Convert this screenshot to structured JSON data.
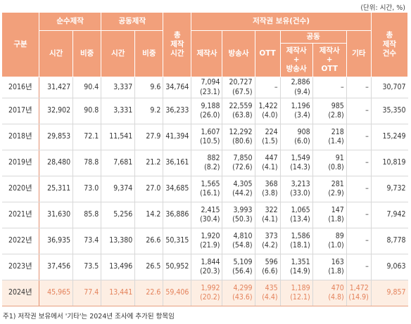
{
  "unit_note": "(단위: 시간, %)",
  "headers": {
    "gubun": "구분",
    "pure_production": "순수제작",
    "co_production": "공동제작",
    "time": "시간",
    "ratio": "비중",
    "total_time": "총\n제작\n시간",
    "copyright": "저작권 보유(건수)",
    "producer": "제작사",
    "broadcaster": "방송사",
    "ott": "OTT",
    "joint": "공동",
    "prod_broad": "제작사\n+\n방송사",
    "prod_ott": "제작사\n+\nOTT",
    "other": "기타",
    "total_count": "총\n제작\n건수"
  },
  "rows": [
    {
      "year": "2016년",
      "pt": "31,427",
      "pr": "90.4",
      "ct": "3,337",
      "cr": "9.6",
      "total": "34,764",
      "producer": [
        "7,094",
        "(23.1)"
      ],
      "broadcaster": [
        "20,727",
        "(67.5)"
      ],
      "ott": [
        "–",
        ""
      ],
      "pb": [
        "2,886",
        "(9.4)"
      ],
      "po": [
        "–",
        ""
      ],
      "other": [
        "–",
        ""
      ],
      "count": "30,707"
    },
    {
      "year": "2017년",
      "pt": "32,902",
      "pr": "90.8",
      "ct": "3,331",
      "cr": "9.2",
      "total": "36,233",
      "producer": [
        "9,188",
        "(26.0)"
      ],
      "broadcaster": [
        "22,559",
        "(63.8)"
      ],
      "ott": [
        "1,422",
        "(4.0)"
      ],
      "pb": [
        "1,196",
        "(3.4)"
      ],
      "po": [
        "985",
        "(2.8)"
      ],
      "other": [
        "–",
        ""
      ],
      "count": "35,350"
    },
    {
      "year": "2018년",
      "pt": "29,853",
      "pr": "72.1",
      "ct": "11,541",
      "cr": "27.9",
      "total": "41,394",
      "producer": [
        "1,607",
        "(10.5)"
      ],
      "broadcaster": [
        "12,292",
        "(80.6)"
      ],
      "ott": [
        "224",
        "(1.5)"
      ],
      "pb": [
        "908",
        "(6.0)"
      ],
      "po": [
        "218",
        "(1.4)"
      ],
      "other": [
        "–",
        ""
      ],
      "count": "15,249"
    },
    {
      "year": "2019년",
      "pt": "28,480",
      "pr": "78.8",
      "ct": "7,681",
      "cr": "21.2",
      "total": "36,161",
      "producer": [
        "882",
        "(8.2)"
      ],
      "broadcaster": [
        "7,850",
        "(72.6)"
      ],
      "ott": [
        "447",
        "(4.1)"
      ],
      "pb": [
        "1,549",
        "(14.3)"
      ],
      "po": [
        "91",
        "(0.8)"
      ],
      "other": [
        "–",
        ""
      ],
      "count": "10,819"
    },
    {
      "year": "2020년",
      "pt": "25,311",
      "pr": "73.0",
      "ct": "9,374",
      "cr": "27.0",
      "total": "34,685",
      "producer": [
        "1,565",
        "(16.1)"
      ],
      "broadcaster": [
        "4,305",
        "(44.2)"
      ],
      "ott": [
        "368",
        "(3.8)"
      ],
      "pb": [
        "3,213",
        "(33.0)"
      ],
      "po": [
        "281",
        "(2.9)"
      ],
      "other": [
        "–",
        ""
      ],
      "count": "9,732"
    },
    {
      "year": "2021년",
      "pt": "31,630",
      "pr": "85.8",
      "ct": "5,256",
      "cr": "14.2",
      "total": "36,886",
      "producer": [
        "2,415",
        "(30.4)"
      ],
      "broadcaster": [
        "3,993",
        "(50.3)"
      ],
      "ott": [
        "322",
        "(4.1)"
      ],
      "pb": [
        "1,065",
        "(13.4)"
      ],
      "po": [
        "147",
        "(1.8)"
      ],
      "other": [
        "–",
        ""
      ],
      "count": "7,942"
    },
    {
      "year": "2022년",
      "pt": "36,935",
      "pr": "73.4",
      "ct": "13,380",
      "cr": "26.6",
      "total": "50,315",
      "producer": [
        "1,920",
        "(21.9)"
      ],
      "broadcaster": [
        "4,810",
        "(54.8)"
      ],
      "ott": [
        "373",
        "(4.2)"
      ],
      "pb": [
        "1,586",
        "(18.1)"
      ],
      "po": [
        "89",
        "(1.0)"
      ],
      "other": [
        "–",
        ""
      ],
      "count": "8,778"
    },
    {
      "year": "2023년",
      "pt": "37,456",
      "pr": "73.5",
      "ct": "13,496",
      "cr": "26.5",
      "total": "50,952",
      "producer": [
        "1,844",
        "(20.3)"
      ],
      "broadcaster": [
        "5,109",
        "(56.4)"
      ],
      "ott": [
        "596",
        "(6.6)"
      ],
      "pb": [
        "1,351",
        "(14.9)"
      ],
      "po": [
        "163",
        "(1.8)"
      ],
      "other": [
        "–",
        ""
      ],
      "count": "9,063"
    },
    {
      "year": "2024년",
      "pt": "45,965",
      "pr": "77.4",
      "ct": "13,441",
      "cr": "22.6",
      "total": "59,406",
      "producer": [
        "1,992",
        "(20.2)"
      ],
      "broadcaster": [
        "4,299",
        "(43.6)"
      ],
      "ott": [
        "435",
        "(4.4)"
      ],
      "pb": [
        "1,189",
        "(12.1)"
      ],
      "po": [
        "470",
        "(4.8)"
      ],
      "other": [
        "1,472",
        "(14.9)"
      ],
      "count": "9,857"
    }
  ],
  "footnote": "주1) 저작권 보유에서 '기타'는 2024년 조사에 추가된 항목임",
  "colors": {
    "header_bg": "#f2a07b",
    "highlight_bg": "#fdeee3",
    "highlight_text": "#e4825b"
  }
}
